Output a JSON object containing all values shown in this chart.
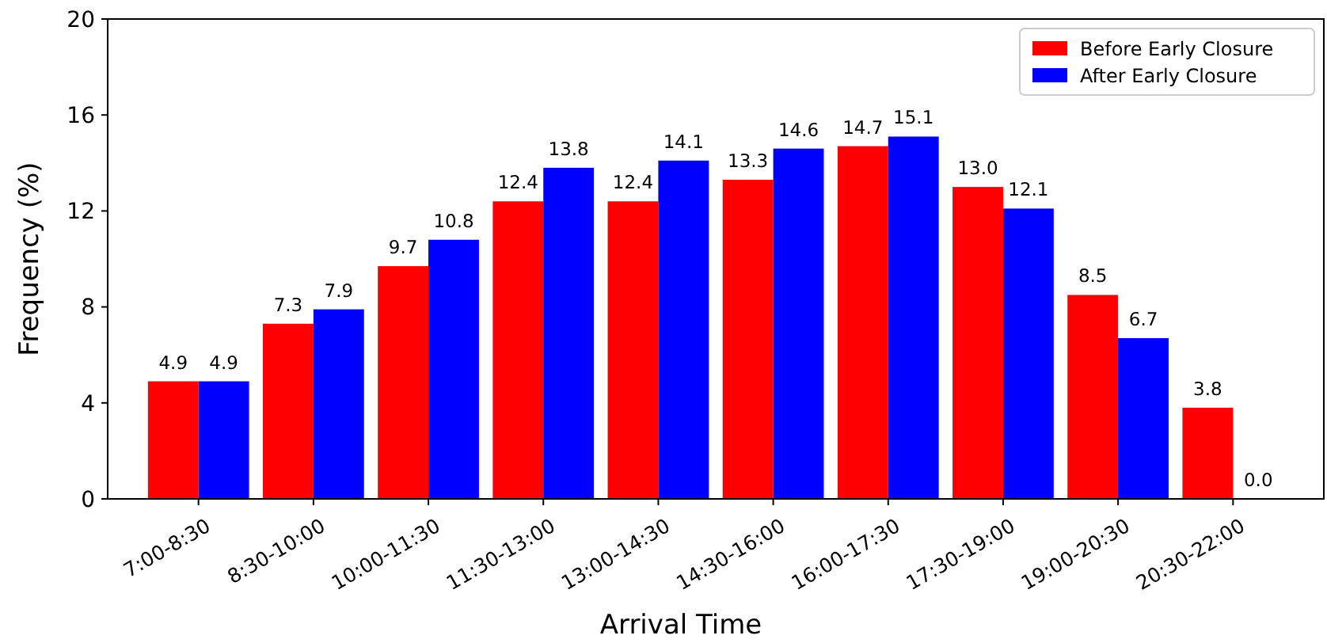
{
  "chart_data": {
    "type": "bar",
    "xlabel": "Arrival Time",
    "ylabel": "Frequency (%)",
    "categories": [
      "7:00-8:30",
      "8:30-10:00",
      "10:00-11:30",
      "11:30-13:00",
      "13:00-14:30",
      "14:30-16:00",
      "16:00-17:30",
      "17:30-19:00",
      "19:00-20:30",
      "20:30-22:00"
    ],
    "series": [
      {
        "name": "Before Early Closure",
        "color": "#ff0000",
        "values": [
          4.9,
          7.3,
          9.7,
          12.4,
          12.4,
          13.3,
          14.7,
          13.0,
          8.5,
          3.8
        ],
        "value_labels": [
          "4.9",
          "7.3",
          "9.7",
          "12.4",
          "12.4",
          "13.3",
          "14.7",
          "13.0",
          "8.5",
          "3.8"
        ]
      },
      {
        "name": "After Early Closure",
        "color": "#0000ff",
        "values": [
          4.9,
          7.9,
          10.8,
          13.8,
          14.1,
          14.6,
          15.1,
          12.1,
          6.7,
          0.0
        ],
        "value_labels": [
          "4.9",
          "7.9",
          "10.8",
          "13.8",
          "14.1",
          "14.6",
          "15.1",
          "12.1",
          "6.7",
          "0.0"
        ]
      }
    ],
    "ylim": [
      0,
      20
    ],
    "yticks": [
      0,
      4,
      8,
      12,
      16,
      20
    ],
    "grid": false,
    "legend": "top right"
  }
}
